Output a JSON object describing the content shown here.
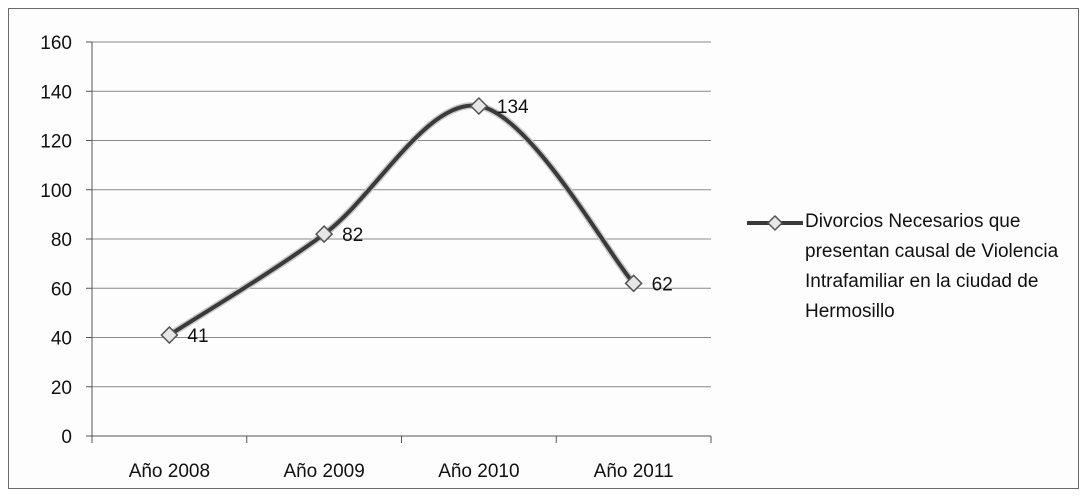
{
  "chart_data": {
    "type": "line",
    "categories": [
      "Año 2008",
      "Año 2009",
      "Año 2010",
      "Año 2011"
    ],
    "series": [
      {
        "name": "Divorcios Necesarios que presentan causal de Violencia Intrafamiliar en la ciudad de Hermosillo",
        "values": [
          41,
          82,
          134,
          62
        ],
        "color": "#3a3a3a",
        "marker": "diamond",
        "smooth": true
      }
    ],
    "data_labels": [
      "41",
      "82",
      "134",
      "62"
    ],
    "ylim": [
      0,
      160
    ],
    "y_ticks": [
      0,
      20,
      40,
      60,
      80,
      100,
      120,
      140,
      160
    ],
    "y_tick_labels": [
      "0",
      "20",
      "40",
      "60",
      "80",
      "100",
      "120",
      "140",
      "160"
    ],
    "grid": true,
    "legend_position": "right",
    "title": "",
    "xlabel": "",
    "ylabel": ""
  }
}
